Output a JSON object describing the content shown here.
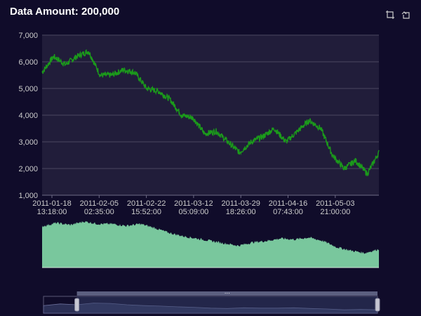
{
  "header": {
    "title": "Data Amount: 200,000"
  },
  "toolbox": {
    "icons": [
      "data-zoom-icon",
      "zoom-reset-icon"
    ]
  },
  "colors": {
    "background": "#100c2a",
    "plot_bg": "#211d3a",
    "line": "#1b9a1b",
    "area_fill": "#79c79d",
    "grid": "#4a4760",
    "slider_fill": "#3c4872"
  },
  "chart_data": [
    {
      "type": "line",
      "title": "Data Amount: 200,000",
      "xlabel": "",
      "ylabel": "",
      "ylim": [
        1000,
        7000
      ],
      "yticks": [
        "1,000",
        "2,000",
        "3,000",
        "4,000",
        "5,000",
        "6,000",
        "7,000"
      ],
      "xticks": [
        {
          "date": "2011-01-18",
          "time": "13:18:00"
        },
        {
          "date": "2011-02-05",
          "time": "02:35:00"
        },
        {
          "date": "2011-02-22",
          "time": "15:52:00"
        },
        {
          "date": "2011-03-12",
          "time": "05:09:00"
        },
        {
          "date": "2011-03-29",
          "time": "18:26:00"
        },
        {
          "date": "2011-04-16",
          "time": "07:43:00"
        },
        {
          "date": "2011-05-03",
          "time": "21:00:00"
        }
      ],
      "grid": true,
      "x": [
        "2011-01-18",
        "2011-01-21",
        "2011-01-25",
        "2011-01-28",
        "2011-02-01",
        "2011-02-05",
        "2011-02-09",
        "2011-02-13",
        "2011-02-17",
        "2011-02-21",
        "2011-02-25",
        "2011-03-01",
        "2011-03-05",
        "2011-03-09",
        "2011-03-12",
        "2011-03-16",
        "2011-03-20",
        "2011-03-24",
        "2011-03-28",
        "2011-04-01",
        "2011-04-05",
        "2011-04-09",
        "2011-04-13",
        "2011-04-16",
        "2011-04-20",
        "2011-04-24",
        "2011-04-28",
        "2011-05-02",
        "2011-05-06",
        "2011-05-10"
      ],
      "series": [
        {
          "values": [
            5600,
            6200,
            5900,
            6200,
            6400,
            5500,
            5500,
            5700,
            5600,
            5000,
            4900,
            4600,
            4000,
            3900,
            3300,
            3400,
            3000,
            2600,
            3000,
            3200,
            3500,
            3000,
            3400,
            3800,
            3500,
            2500,
            2000,
            2300,
            1800,
            2600
          ]
        }
      ]
    },
    {
      "type": "area",
      "title": "",
      "xlabel": "",
      "ylabel": "",
      "values": [
        0.85,
        0.92,
        0.88,
        0.95,
        0.9,
        0.9,
        0.86,
        0.9,
        0.82,
        0.72,
        0.65,
        0.6,
        0.55,
        0.5,
        0.45,
        0.52,
        0.55,
        0.6,
        0.58,
        0.62,
        0.55,
        0.42,
        0.35,
        0.3,
        0.38
      ]
    }
  ],
  "slider": {
    "start": 0.1,
    "end": 1.0,
    "handle_label": "⋯",
    "overview": [
      0.45,
      0.55,
      0.5,
      0.6,
      0.58,
      0.5,
      0.45,
      0.42,
      0.38,
      0.35,
      0.3,
      0.28,
      0.32,
      0.3,
      0.3,
      0.32,
      0.28,
      0.25,
      0.2,
      0.22,
      0.2
    ]
  }
}
